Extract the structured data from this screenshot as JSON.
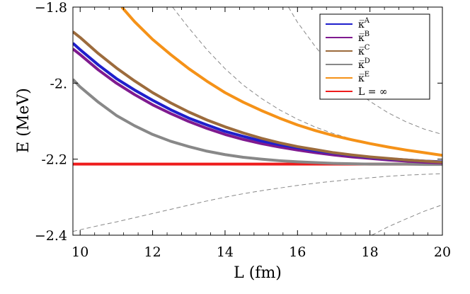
{
  "chart_data": {
    "type": "line",
    "title": "",
    "xlabel": "L (fm)",
    "ylabel": "E (MeV)",
    "xlim": [
      9.8,
      20
    ],
    "ylim": [
      -2.4,
      -1.8
    ],
    "xticks": [
      10,
      12,
      14,
      16,
      18,
      20
    ],
    "xtick_labels": [
      "10",
      "12",
      "14",
      "16",
      "18",
      "20"
    ],
    "yticks": [
      -2.4,
      -2.2,
      -2.0,
      -1.8
    ],
    "ytick_labels": [
      "−2.4",
      "-2.2",
      "-2.",
      "−1.8"
    ],
    "legend_position": "top-right",
    "series": [
      {
        "name": "κ̅^A",
        "base": "κ̅",
        "sup": "A",
        "color": "#1f1fcc",
        "style": "solid",
        "x": [
          9.8,
          10,
          10.5,
          11,
          11.5,
          12,
          12.5,
          13,
          13.5,
          14,
          14.5,
          15,
          15.5,
          16,
          16.5,
          17,
          17.5,
          18,
          18.5,
          19,
          19.5,
          20
        ],
        "y": [
          -1.895,
          -1.912,
          -1.952,
          -1.988,
          -2.018,
          -2.045,
          -2.07,
          -2.092,
          -2.11,
          -2.127,
          -2.14,
          -2.152,
          -2.162,
          -2.17,
          -2.178,
          -2.184,
          -2.19,
          -2.195,
          -2.199,
          -2.202,
          -2.205,
          -2.207
        ]
      },
      {
        "name": "κ̅^B",
        "base": "κ̅",
        "sup": "B",
        "color": "#7f1a8f",
        "style": "solid",
        "x": [
          9.8,
          10,
          10.5,
          11,
          11.5,
          12,
          12.5,
          13,
          13.5,
          14,
          14.5,
          15,
          15.5,
          16,
          16.5,
          17,
          17.5,
          18,
          18.5,
          19,
          19.5,
          20
        ],
        "y": [
          -1.91,
          -1.925,
          -1.965,
          -2.0,
          -2.03,
          -2.057,
          -2.08,
          -2.101,
          -2.119,
          -2.135,
          -2.148,
          -2.159,
          -2.168,
          -2.176,
          -2.183,
          -2.189,
          -2.194,
          -2.198,
          -2.202,
          -2.205,
          -2.208,
          -2.21
        ]
      },
      {
        "name": "κ̅^C",
        "base": "κ̅",
        "sup": "C",
        "color": "#9c6b3c",
        "style": "solid",
        "x": [
          9.8,
          10,
          10.5,
          11,
          11.5,
          12,
          12.5,
          13,
          13.5,
          14,
          14.5,
          15,
          15.5,
          16,
          16.5,
          17,
          17.5,
          18,
          18.5,
          19,
          19.5,
          20
        ],
        "y": [
          -1.865,
          -1.88,
          -1.922,
          -1.96,
          -1.994,
          -2.025,
          -2.052,
          -2.076,
          -2.097,
          -2.115,
          -2.131,
          -2.145,
          -2.157,
          -2.167,
          -2.175,
          -2.183,
          -2.189,
          -2.194,
          -2.198,
          -2.202,
          -2.205,
          -2.208
        ]
      },
      {
        "name": "κ̅^D",
        "base": "κ̅",
        "sup": "D",
        "color": "#888888",
        "style": "solid",
        "x": [
          9.8,
          10,
          10.5,
          11,
          11.5,
          12,
          12.5,
          13,
          13.5,
          14,
          14.5,
          15,
          15.5,
          16,
          16.5,
          17,
          17.5,
          18,
          18.5,
          19,
          19.5,
          20
        ],
        "y": [
          -1.99,
          -2.01,
          -2.05,
          -2.085,
          -2.112,
          -2.135,
          -2.153,
          -2.167,
          -2.179,
          -2.188,
          -2.195,
          -2.2,
          -2.204,
          -2.207,
          -2.209,
          -2.211,
          -2.212,
          -2.213,
          -2.213,
          -2.213,
          -2.214,
          -2.214
        ]
      },
      {
        "name": "κ̅^E",
        "base": "κ̅",
        "sup": "E",
        "color": "#f59218",
        "style": "solid",
        "x": [
          11.15,
          11.5,
          12,
          12.5,
          13,
          13.5,
          14,
          14.5,
          15,
          15.5,
          16,
          16.5,
          17,
          17.5,
          18,
          18.5,
          19,
          19.5,
          20
        ],
        "y": [
          -1.8,
          -1.838,
          -1.885,
          -1.925,
          -1.962,
          -1.995,
          -2.025,
          -2.05,
          -2.072,
          -2.092,
          -2.11,
          -2.125,
          -2.138,
          -2.149,
          -2.159,
          -2.168,
          -2.176,
          -2.183,
          -2.19
        ]
      },
      {
        "name": "L = ∞",
        "base": "L = ∞",
        "sup": "",
        "color": "#ee1c1c",
        "style": "solid",
        "x": [
          9.8,
          20
        ],
        "y": [
          -2.213,
          -2.213
        ]
      },
      {
        "name": "",
        "color": "#888888",
        "style": "dashed",
        "x": [
          12.55,
          13,
          13.5,
          14,
          14.5,
          15,
          15.5,
          16,
          16.5,
          17,
          17.5,
          18,
          18.5,
          19,
          19.5,
          20
        ],
        "y": [
          -1.8,
          -1.855,
          -1.912,
          -1.962,
          -2.005,
          -2.04,
          -2.07,
          -2.095,
          -2.116,
          -2.133,
          -2.147,
          -2.159,
          -2.169,
          -2.177,
          -2.184,
          -2.19
        ]
      },
      {
        "name": "",
        "color": "#888888",
        "style": "dashed",
        "x": [
          15.75,
          16,
          16.5,
          17,
          17.5,
          18,
          18.5,
          19,
          19.5,
          20
        ],
        "y": [
          -1.8,
          -1.84,
          -1.905,
          -1.962,
          -2.01,
          -2.048,
          -2.078,
          -2.102,
          -2.121,
          -2.135
        ]
      },
      {
        "name": "",
        "color": "#888888",
        "style": "dashed",
        "x": [
          9.8,
          10.5,
          11,
          11.5,
          12,
          12.5,
          13,
          13.5,
          14,
          14.5,
          15,
          15.5,
          16,
          16.5,
          17,
          17.5,
          18,
          18.5,
          19,
          19.5,
          20
        ],
        "y": [
          -2.39,
          -2.375,
          -2.365,
          -2.354,
          -2.343,
          -2.332,
          -2.321,
          -2.31,
          -2.3,
          -2.291,
          -2.283,
          -2.276,
          -2.269,
          -2.263,
          -2.258,
          -2.253,
          -2.249,
          -2.245,
          -2.242,
          -2.24,
          -2.238
        ]
      },
      {
        "name": "",
        "color": "#888888",
        "style": "dashed",
        "x": [
          18.05,
          18.5,
          19,
          19.5,
          20
        ],
        "y": [
          -2.4,
          -2.378,
          -2.357,
          -2.337,
          -2.32
        ]
      }
    ]
  }
}
